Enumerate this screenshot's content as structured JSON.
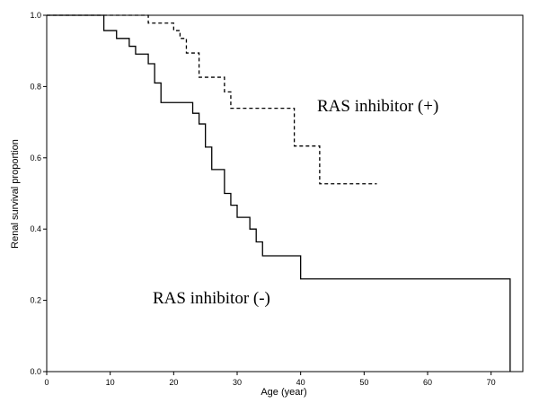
{
  "chart_data": {
    "type": "line",
    "subtype": "kaplan-meier step",
    "title": "",
    "xlabel": "Age (year)",
    "ylabel": "Renal survival proportion",
    "xlim": [
      0,
      75
    ],
    "ylim": [
      0,
      1.0
    ],
    "x_ticks": [
      "0",
      "10",
      "20",
      "30",
      "40",
      "50",
      "60",
      "70"
    ],
    "y_ticks": [
      "0.0",
      "0.2",
      "0.4",
      "0.6",
      "0.8",
      "1.0"
    ],
    "grid": false,
    "legend": "none",
    "series": [
      {
        "name": "RAS inhibitor (+)",
        "style": "dashed",
        "color": "#000000",
        "steps": [
          [
            0,
            1.0
          ],
          [
            16,
            0.978
          ],
          [
            20,
            0.957
          ],
          [
            21,
            0.935
          ],
          [
            22,
            0.894
          ],
          [
            24,
            0.826
          ],
          [
            28,
            0.785
          ],
          [
            29,
            0.739
          ],
          [
            39,
            0.633
          ],
          [
            43,
            0.527
          ],
          [
            52,
            0.527
          ]
        ]
      },
      {
        "name": "RAS inhibitor (-)",
        "style": "solid",
        "color": "#000000",
        "steps": [
          [
            0,
            1.0
          ],
          [
            9,
            0.957
          ],
          [
            11,
            0.935
          ],
          [
            13,
            0.913
          ],
          [
            14,
            0.891
          ],
          [
            16,
            0.864
          ],
          [
            17,
            0.81
          ],
          [
            18,
            0.755
          ],
          [
            23,
            0.725
          ],
          [
            24,
            0.695
          ],
          [
            25,
            0.63
          ],
          [
            26,
            0.567
          ],
          [
            28,
            0.5
          ],
          [
            29,
            0.467
          ],
          [
            30,
            0.433
          ],
          [
            32,
            0.4
          ],
          [
            33,
            0.364
          ],
          [
            34,
            0.325
          ],
          [
            40,
            0.26
          ],
          [
            73,
            0.26
          ],
          [
            73,
            0.0
          ]
        ]
      }
    ]
  }
}
